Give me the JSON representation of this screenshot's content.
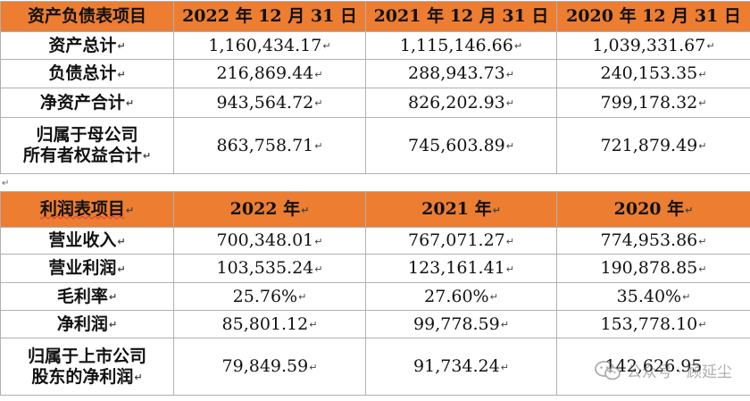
{
  "balance": {
    "header": [
      "资产负债表项目",
      "2022 年 12 月 31 日",
      "2021 年 12 月 31 日",
      "2020 年 12 月 31 日"
    ],
    "rows": [
      {
        "label": "资产总计",
        "values": [
          "1,160,434.17",
          "1,115,146.66",
          "1,039,331.67"
        ]
      },
      {
        "label": "负债总计",
        "values": [
          "216,869.44",
          "288,943.73",
          "240,153.35"
        ]
      },
      {
        "label": "净资产合计",
        "values": [
          "943,564.72",
          "826,202.93",
          "799,178.32"
        ]
      },
      {
        "label_lines": [
          "归属于母公司",
          "所有者权益合计"
        ],
        "values": [
          "863,758.71",
          "745,603.89",
          "721,879.49"
        ]
      }
    ]
  },
  "income": {
    "header": [
      "利润表项目",
      "2022 年",
      "2021 年",
      "2020 年"
    ],
    "rows": [
      {
        "label": "营业收入",
        "values": [
          "700,348.01",
          "767,071.27",
          "774,953.86"
        ]
      },
      {
        "label": "营业利润",
        "values": [
          "103,535.24",
          "123,161.41",
          "190,878.85"
        ]
      },
      {
        "label": "毛利率",
        "values": [
          "25.76%",
          "27.60%",
          "35.40%"
        ]
      },
      {
        "label": "净利润",
        "values": [
          "85,801.12",
          "99,778.59",
          "153,778.10"
        ]
      },
      {
        "label_lines": [
          "归属于上市公司",
          "股东的净利润"
        ],
        "values": [
          "79,849.59",
          "91,734.24",
          "142,626.95"
        ]
      }
    ]
  },
  "watermark": {
    "text": "公众号 · 顾延尘",
    "icon": "wechat-icon"
  },
  "colors": {
    "header_bg": "#ed7d31",
    "border": "#b0b0b0"
  }
}
